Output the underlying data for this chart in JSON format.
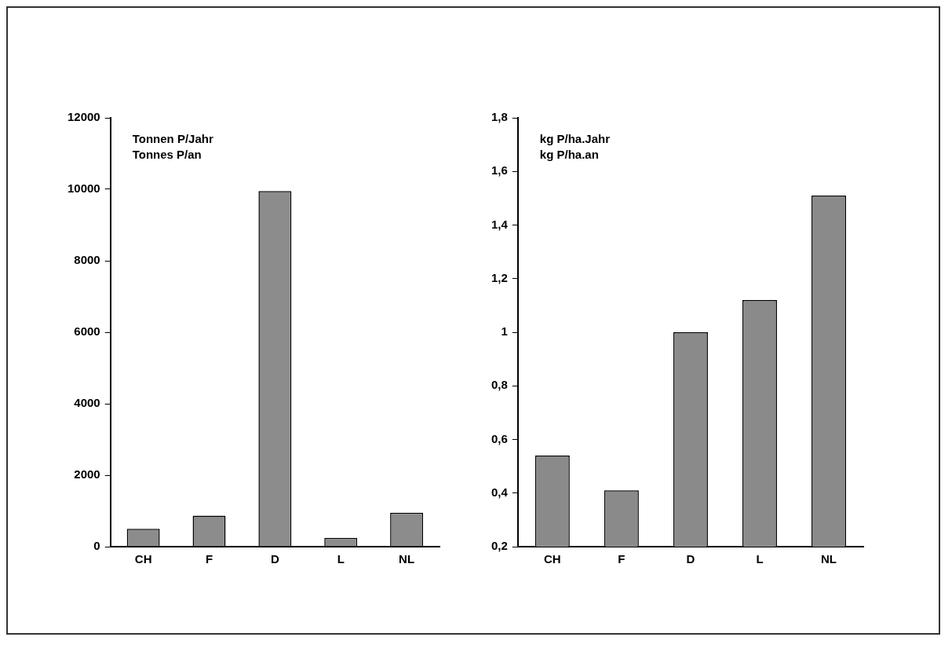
{
  "chart_data": [
    {
      "type": "bar",
      "categories": [
        "CH",
        "F",
        "D",
        "L",
        "NL"
      ],
      "values": [
        500,
        870,
        9950,
        250,
        950
      ],
      "color": "#8c8c8c",
      "ylim": [
        0,
        12000
      ],
      "yticks": [
        0,
        2000,
        4000,
        6000,
        8000,
        10000,
        12000
      ],
      "annotations": [
        "Tonnen P/Jahr",
        "Tonnes P/an"
      ],
      "grid": false,
      "legend": false
    },
    {
      "type": "bar",
      "categories": [
        "CH",
        "F",
        "D",
        "L",
        "NL"
      ],
      "values": [
        0.54,
        0.41,
        1.0,
        1.12,
        1.51
      ],
      "color": "#8a8a8a",
      "ylim": [
        0.2,
        1.8
      ],
      "yticks": [
        {
          "value": 0.2,
          "label": "0,2"
        },
        {
          "value": 0.4,
          "label": "0,4"
        },
        {
          "value": 0.6,
          "label": "0,6"
        },
        {
          "value": 0.8,
          "label": "0,8"
        },
        1,
        {
          "value": 1.2,
          "label": "1,2"
        },
        {
          "value": 1.4,
          "label": "1,4"
        },
        {
          "value": 1.6,
          "label": "1,6"
        },
        {
          "value": 1.8,
          "label": "1,8"
        }
      ],
      "annotations": [
        "kg P/ha.Jahr",
        "kg P/ha.an"
      ],
      "grid": false,
      "legend": false
    }
  ]
}
